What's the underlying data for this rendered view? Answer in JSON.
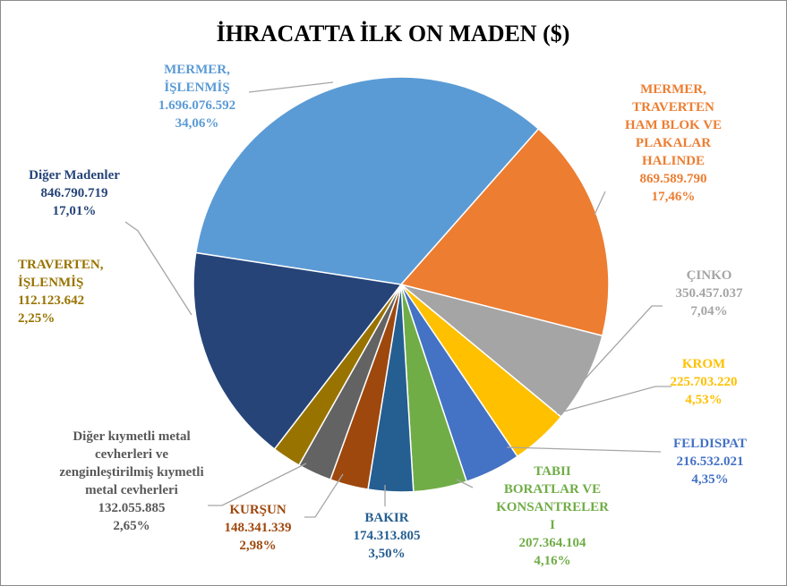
{
  "chart_data": {
    "type": "pie",
    "title": "İHRACATTA İLK ON MADEN ($)",
    "categories": [
      "MERMER,\nİŞLENMİŞ",
      "MERMER,\nTRAVERTEN\nHAM BLOK VE\nPLAKALAR\nHALINDE",
      "ÇINKO",
      "KROM",
      "FELDISPAT",
      "TABII\nBORATLAR VE\nKONSANTRELER\nI",
      "BAKIR",
      "KURŞUN",
      "Diğer kıymetli metal\ncevherleri ve\nzenginleştirilmiş  kıymetli\nmetal cevherleri",
      "TRAVERTEN,\nİŞLENMİŞ",
      "Diğer Madenler"
    ],
    "values": [
      1696076592,
      869589790,
      350457037,
      225703220,
      216532021,
      207364104,
      174313805,
      148341339,
      132055885,
      112123642,
      846790719
    ],
    "value_labels": [
      "1.696.076.592",
      "869.589.790",
      "350.457.037",
      "225.703.220",
      "216.532.021",
      "207.364.104",
      "174.313.805",
      "148.341.339",
      "132.055.885",
      "112.123.642",
      "846.790.719"
    ],
    "percents": [
      34.06,
      17.46,
      7.04,
      4.53,
      4.35,
      4.16,
      3.5,
      2.98,
      2.65,
      2.25,
      17.01
    ],
    "percent_labels": [
      "34,06%",
      "17,46%",
      "7,04%",
      "4,53%",
      "4,35%",
      "4,16%",
      "3,50%",
      "2,98%",
      "2,65%",
      "2,25%",
      "17,01%"
    ],
    "colors": [
      "#5b9bd5",
      "#ed7d31",
      "#a5a5a5",
      "#ffc000",
      "#4472c4",
      "#70ad47",
      "#255e91",
      "#9e480e",
      "#636363",
      "#997300",
      "#264478"
    ],
    "label_colors": [
      "#5b9bd5",
      "#ed7d31",
      "#a5a5a5",
      "#ffc000",
      "#4472c4",
      "#70ad47",
      "#255e91",
      "#9e480e",
      "#595959",
      "#997300",
      "#264478"
    ]
  }
}
